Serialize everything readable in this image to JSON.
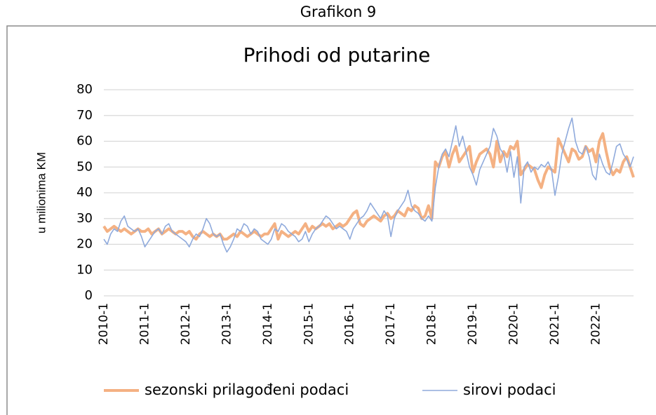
{
  "chart_data": {
    "type": "line",
    "figure_label": "Grafikon 9",
    "title": "Prihodi od putarine",
    "ylabel": "u milionima KM",
    "categories": [
      "2010-1",
      null,
      null,
      null,
      null,
      null,
      null,
      null,
      null,
      null,
      null,
      null,
      "2011-1",
      null,
      null,
      null,
      null,
      null,
      null,
      null,
      null,
      null,
      null,
      null,
      "2012-1",
      null,
      null,
      null,
      null,
      null,
      null,
      null,
      null,
      null,
      null,
      null,
      "2013-1",
      null,
      null,
      null,
      null,
      null,
      null,
      null,
      null,
      null,
      null,
      null,
      "2014-1",
      null,
      null,
      null,
      null,
      null,
      null,
      null,
      null,
      null,
      null,
      null,
      "2015-1",
      null,
      null,
      null,
      null,
      null,
      null,
      null,
      null,
      null,
      null,
      null,
      "2016-1",
      null,
      null,
      null,
      null,
      null,
      null,
      null,
      null,
      null,
      null,
      null,
      "2017-1",
      null,
      null,
      null,
      null,
      null,
      null,
      null,
      null,
      null,
      null,
      null,
      "2018-1",
      null,
      null,
      null,
      null,
      null,
      null,
      null,
      null,
      null,
      null,
      null,
      "2019-1",
      null,
      null,
      null,
      null,
      null,
      null,
      null,
      null,
      null,
      null,
      null,
      "2020-1",
      null,
      null,
      null,
      null,
      null,
      null,
      null,
      null,
      null,
      null,
      null,
      "2021-1",
      null,
      null,
      null,
      null,
      null,
      null,
      null,
      null,
      null,
      null,
      null,
      "2022-1",
      null,
      null,
      null,
      null,
      null,
      null,
      null,
      null,
      null,
      null,
      null
    ],
    "series": [
      {
        "name": "sezonski prilagođeni podaci",
        "color": "#f4b183",
        "width": 4,
        "values": [
          27,
          25,
          26,
          27,
          26,
          25,
          26,
          25,
          24,
          25,
          26,
          25,
          25,
          26,
          24,
          25,
          26,
          24,
          25,
          26,
          25,
          24,
          25,
          25,
          24,
          25,
          23,
          22,
          24,
          25,
          24,
          23,
          24,
          23,
          24,
          22,
          22,
          23,
          24,
          23,
          25,
          24,
          23,
          24,
          25,
          24,
          23,
          24,
          24,
          26,
          28,
          22,
          25,
          24,
          23,
          24,
          25,
          24,
          26,
          28,
          25,
          27,
          26,
          27,
          28,
          27,
          28,
          26,
          27,
          28,
          27,
          28,
          30,
          32,
          33,
          28,
          27,
          29,
          30,
          31,
          30,
          29,
          31,
          32,
          30,
          31,
          33,
          32,
          31,
          34,
          33,
          35,
          34,
          30,
          31,
          35,
          30,
          52,
          50,
          54,
          56,
          50,
          55,
          58,
          52,
          54,
          56,
          58,
          48,
          52,
          55,
          56,
          57,
          55,
          50,
          60,
          52,
          56,
          54,
          58,
          57,
          60,
          47,
          49,
          51,
          50,
          49,
          45,
          42,
          47,
          50,
          49,
          48,
          61,
          58,
          55,
          52,
          57,
          56,
          53,
          54,
          58,
          56,
          57,
          52,
          60,
          63,
          56,
          50,
          47,
          49,
          48,
          52,
          54,
          50,
          46
        ]
      },
      {
        "name": "sirovi podaci",
        "color": "#8faadc",
        "width": 1.6,
        "values": [
          22,
          20,
          24,
          26,
          25,
          29,
          31,
          27,
          26,
          25,
          26,
          23,
          19,
          21,
          23,
          25,
          26,
          24,
          27,
          28,
          25,
          24,
          23,
          22,
          21,
          19,
          22,
          24,
          23,
          26,
          30,
          28,
          24,
          23,
          24,
          20,
          17,
          19,
          22,
          26,
          25,
          28,
          27,
          24,
          26,
          25,
          22,
          21,
          20,
          22,
          26,
          25,
          28,
          27,
          25,
          24,
          23,
          21,
          22,
          25,
          21,
          24,
          26,
          27,
          29,
          31,
          30,
          28,
          26,
          27,
          26,
          25,
          22,
          26,
          28,
          30,
          31,
          33,
          36,
          34,
          32,
          30,
          33,
          31,
          23,
          30,
          33,
          35,
          37,
          41,
          35,
          33,
          32,
          30,
          29,
          31,
          29,
          42,
          50,
          55,
          57,
          54,
          60,
          66,
          58,
          62,
          56,
          50,
          47,
          43,
          49,
          52,
          55,
          58,
          65,
          62,
          57,
          55,
          48,
          56,
          46,
          54,
          36,
          50,
          52,
          48,
          50,
          49,
          51,
          50,
          52,
          49,
          39,
          46,
          55,
          60,
          65,
          69,
          60,
          56,
          55,
          58,
          54,
          47,
          45,
          55,
          51,
          48,
          47,
          52,
          58,
          59,
          55,
          53,
          50,
          54
        ]
      }
    ],
    "ylim": [
      0,
      80
    ],
    "yticks": [
      0,
      10,
      20,
      30,
      40,
      50,
      60,
      70,
      80
    ],
    "grid": true,
    "legend": "bottom"
  }
}
